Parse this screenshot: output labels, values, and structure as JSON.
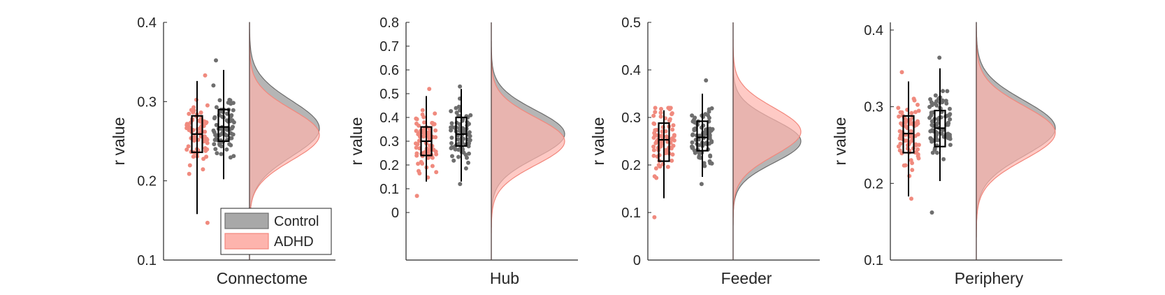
{
  "legend": {
    "entries": [
      {
        "label": "Control",
        "color": "#a8a8a8"
      },
      {
        "label": "ADHD",
        "color": "#fdb4ad"
      }
    ]
  },
  "colors": {
    "control_dots": "#6e6e6e",
    "adhd_dots": "#f08a7e",
    "control_fill": "#a8a8a8",
    "adhd_fill": "#fdb4ad",
    "control_edge": "#6e6e6e",
    "adhd_edge": "#f2877c",
    "overlap": "#d89a90"
  },
  "chart_data": [
    {
      "type": "raincloud",
      "xlabel": "Connectome",
      "ylabel": "r value",
      "ylim": [
        0.1,
        0.4
      ],
      "yticks": [
        "0.1",
        "0.2",
        "0.3",
        "0.4"
      ],
      "series": [
        {
          "name": "ADHD",
          "q1": 0.236,
          "median": 0.259,
          "q3": 0.282,
          "whisker_low": 0.158,
          "whisker_high": 0.326,
          "range": [
            0.147,
            0.333
          ],
          "density_peak": 0.258,
          "density_sd": 0.032
        },
        {
          "name": "Control",
          "q1": 0.25,
          "median": 0.268,
          "q3": 0.29,
          "whisker_low": 0.202,
          "whisker_high": 0.34,
          "range": [
            0.158,
            0.352
          ],
          "density_peak": 0.266,
          "density_sd": 0.035
        }
      ]
    },
    {
      "type": "raincloud",
      "xlabel": "Hub",
      "ylabel": "r value",
      "ylim": [
        -0.2,
        0.8
      ],
      "yticks": [
        "0",
        "0.1",
        "0.2",
        "0.3",
        "0.4",
        "0.5",
        "0.6",
        "0.7",
        "0.8"
      ],
      "series": [
        {
          "name": "ADHD",
          "q1": 0.24,
          "median": 0.3,
          "q3": 0.36,
          "whisker_low": 0.13,
          "whisker_high": 0.49,
          "range": [
            0.07,
            0.52
          ],
          "density_peak": 0.3,
          "density_sd": 0.1
        },
        {
          "name": "Control",
          "q1": 0.28,
          "median": 0.33,
          "q3": 0.4,
          "whisker_low": 0.13,
          "whisker_high": 0.52,
          "range": [
            0.12,
            0.53
          ],
          "density_peak": 0.33,
          "density_sd": 0.1
        }
      ]
    },
    {
      "type": "raincloud",
      "xlabel": "Feeder",
      "ylabel": "r value",
      "ylim": [
        0,
        0.5
      ],
      "yticks": [
        "0",
        "0.1",
        "0.2",
        "0.3",
        "0.4",
        "0.5"
      ],
      "series": [
        {
          "name": "ADHD",
          "q1": 0.208,
          "median": 0.253,
          "q3": 0.288,
          "whisker_low": 0.13,
          "whisker_high": 0.315,
          "range": [
            0.09,
            0.32
          ],
          "density_peak": 0.27,
          "density_sd": 0.05
        },
        {
          "name": "Control",
          "q1": 0.23,
          "median": 0.258,
          "q3": 0.292,
          "whisker_low": 0.175,
          "whisker_high": 0.35,
          "range": [
            0.16,
            0.378
          ],
          "density_peak": 0.25,
          "density_sd": 0.045
        }
      ]
    },
    {
      "type": "raincloud",
      "xlabel": "Periphery",
      "ylabel": "r value",
      "ylim": [
        0.1,
        0.41
      ],
      "yticks": [
        "0.1",
        "0.2",
        "0.3",
        "0.4"
      ],
      "series": [
        {
          "name": "ADHD",
          "q1": 0.24,
          "median": 0.265,
          "q3": 0.288,
          "whisker_low": 0.183,
          "whisker_high": 0.333,
          "range": [
            0.18,
            0.345
          ],
          "density_peak": 0.266,
          "density_sd": 0.035
        },
        {
          "name": "Control",
          "q1": 0.248,
          "median": 0.272,
          "q3": 0.295,
          "whisker_low": 0.203,
          "whisker_high": 0.35,
          "range": [
            0.162,
            0.364
          ],
          "density_peak": 0.272,
          "density_sd": 0.036
        }
      ]
    }
  ]
}
